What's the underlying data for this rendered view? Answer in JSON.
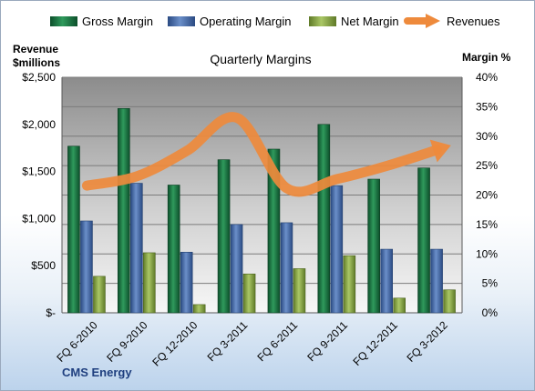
{
  "chart_data": {
    "type": "bar",
    "title": "Quarterly Margins",
    "company": "CMS Energy",
    "left_axis_label_line1": "Revenue",
    "left_axis_label_line2": "$millions",
    "right_axis_label": "Margin %",
    "categories": [
      "FQ 6-2010",
      "FQ 9-2010",
      "FQ 12-2010",
      "FQ 3-2011",
      "FQ 6-2011",
      "FQ 9-2011",
      "FQ 12-2011",
      "FQ 3-2012"
    ],
    "left_ticks": [
      "$-",
      "$500",
      "$1,000",
      "$1,500",
      "$2,000",
      "$2,500"
    ],
    "right_ticks": [
      "0%",
      "5%",
      "10%",
      "15%",
      "20%",
      "25%",
      "30%",
      "35%",
      "40%"
    ],
    "ylim_left": [
      0,
      2500
    ],
    "ylim_right": [
      0,
      40
    ],
    "grid": true,
    "legend_placement": "top",
    "series": [
      {
        "name": "Gross Margin",
        "axis": "right",
        "color": "#1e7a46",
        "values": [
          28.3,
          34.7,
          21.7,
          26.0,
          27.8,
          32.0,
          22.7,
          24.6
        ]
      },
      {
        "name": "Operating Margin",
        "axis": "right",
        "color": "#4a6fae",
        "values": [
          15.6,
          22.0,
          10.3,
          15.0,
          15.3,
          21.6,
          10.8,
          10.8
        ]
      },
      {
        "name": "Net Margin",
        "axis": "right",
        "color": "#8cab4a",
        "values": [
          6.2,
          10.2,
          1.4,
          6.6,
          7.5,
          9.7,
          2.5,
          3.9
        ]
      },
      {
        "name": "Revenues",
        "axis": "left",
        "color": "#ee8a3c",
        "type": "line",
        "values": [
          1350,
          1450,
          1720,
          2070,
          1320,
          1420,
          1560,
          1730
        ]
      }
    ],
    "colors": {
      "plot_bg_top": "#8c8c8c",
      "plot_bg_bottom": "#f7f7f7",
      "gridline": "#7b7b7b"
    }
  }
}
